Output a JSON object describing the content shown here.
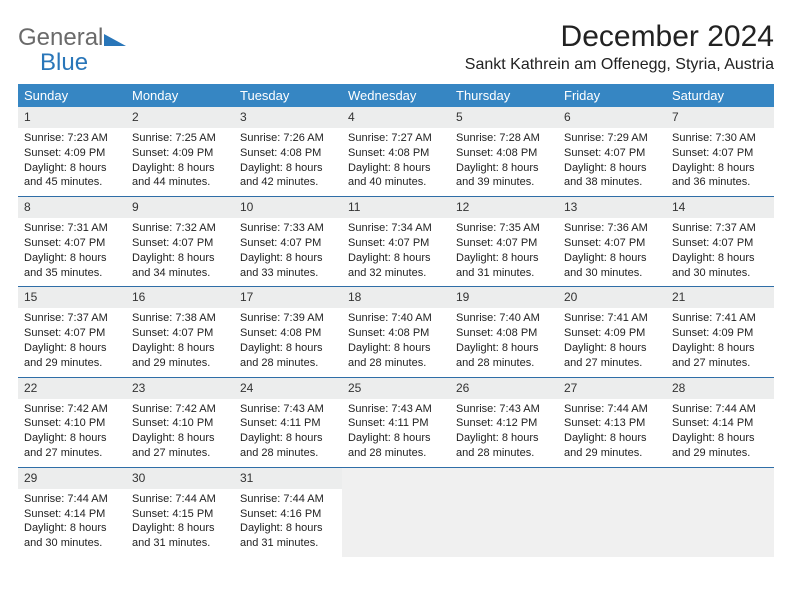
{
  "logo": {
    "text1": "General",
    "text2": "Blue"
  },
  "title": "December 2024",
  "location": "Sankt Kathrein am Offenegg, Styria, Austria",
  "weekday_header_bg": "#3686c3",
  "weekday_header_color": "#ffffff",
  "daynum_bg": "#eceded",
  "week_border_color": "#2f6ea7",
  "empty_bg": "#f0f0f0",
  "weekdays": [
    "Sunday",
    "Monday",
    "Tuesday",
    "Wednesday",
    "Thursday",
    "Friday",
    "Saturday"
  ],
  "weeks": [
    [
      {
        "n": "1",
        "sr": "Sunrise: 7:23 AM",
        "ss": "Sunset: 4:09 PM",
        "dl": "Daylight: 8 hours and 45 minutes."
      },
      {
        "n": "2",
        "sr": "Sunrise: 7:25 AM",
        "ss": "Sunset: 4:09 PM",
        "dl": "Daylight: 8 hours and 44 minutes."
      },
      {
        "n": "3",
        "sr": "Sunrise: 7:26 AM",
        "ss": "Sunset: 4:08 PM",
        "dl": "Daylight: 8 hours and 42 minutes."
      },
      {
        "n": "4",
        "sr": "Sunrise: 7:27 AM",
        "ss": "Sunset: 4:08 PM",
        "dl": "Daylight: 8 hours and 40 minutes."
      },
      {
        "n": "5",
        "sr": "Sunrise: 7:28 AM",
        "ss": "Sunset: 4:08 PM",
        "dl": "Daylight: 8 hours and 39 minutes."
      },
      {
        "n": "6",
        "sr": "Sunrise: 7:29 AM",
        "ss": "Sunset: 4:07 PM",
        "dl": "Daylight: 8 hours and 38 minutes."
      },
      {
        "n": "7",
        "sr": "Sunrise: 7:30 AM",
        "ss": "Sunset: 4:07 PM",
        "dl": "Daylight: 8 hours and 36 minutes."
      }
    ],
    [
      {
        "n": "8",
        "sr": "Sunrise: 7:31 AM",
        "ss": "Sunset: 4:07 PM",
        "dl": "Daylight: 8 hours and 35 minutes."
      },
      {
        "n": "9",
        "sr": "Sunrise: 7:32 AM",
        "ss": "Sunset: 4:07 PM",
        "dl": "Daylight: 8 hours and 34 minutes."
      },
      {
        "n": "10",
        "sr": "Sunrise: 7:33 AM",
        "ss": "Sunset: 4:07 PM",
        "dl": "Daylight: 8 hours and 33 minutes."
      },
      {
        "n": "11",
        "sr": "Sunrise: 7:34 AM",
        "ss": "Sunset: 4:07 PM",
        "dl": "Daylight: 8 hours and 32 minutes."
      },
      {
        "n": "12",
        "sr": "Sunrise: 7:35 AM",
        "ss": "Sunset: 4:07 PM",
        "dl": "Daylight: 8 hours and 31 minutes."
      },
      {
        "n": "13",
        "sr": "Sunrise: 7:36 AM",
        "ss": "Sunset: 4:07 PM",
        "dl": "Daylight: 8 hours and 30 minutes."
      },
      {
        "n": "14",
        "sr": "Sunrise: 7:37 AM",
        "ss": "Sunset: 4:07 PM",
        "dl": "Daylight: 8 hours and 30 minutes."
      }
    ],
    [
      {
        "n": "15",
        "sr": "Sunrise: 7:37 AM",
        "ss": "Sunset: 4:07 PM",
        "dl": "Daylight: 8 hours and 29 minutes."
      },
      {
        "n": "16",
        "sr": "Sunrise: 7:38 AM",
        "ss": "Sunset: 4:07 PM",
        "dl": "Daylight: 8 hours and 29 minutes."
      },
      {
        "n": "17",
        "sr": "Sunrise: 7:39 AM",
        "ss": "Sunset: 4:08 PM",
        "dl": "Daylight: 8 hours and 28 minutes."
      },
      {
        "n": "18",
        "sr": "Sunrise: 7:40 AM",
        "ss": "Sunset: 4:08 PM",
        "dl": "Daylight: 8 hours and 28 minutes."
      },
      {
        "n": "19",
        "sr": "Sunrise: 7:40 AM",
        "ss": "Sunset: 4:08 PM",
        "dl": "Daylight: 8 hours and 28 minutes."
      },
      {
        "n": "20",
        "sr": "Sunrise: 7:41 AM",
        "ss": "Sunset: 4:09 PM",
        "dl": "Daylight: 8 hours and 27 minutes."
      },
      {
        "n": "21",
        "sr": "Sunrise: 7:41 AM",
        "ss": "Sunset: 4:09 PM",
        "dl": "Daylight: 8 hours and 27 minutes."
      }
    ],
    [
      {
        "n": "22",
        "sr": "Sunrise: 7:42 AM",
        "ss": "Sunset: 4:10 PM",
        "dl": "Daylight: 8 hours and 27 minutes."
      },
      {
        "n": "23",
        "sr": "Sunrise: 7:42 AM",
        "ss": "Sunset: 4:10 PM",
        "dl": "Daylight: 8 hours and 27 minutes."
      },
      {
        "n": "24",
        "sr": "Sunrise: 7:43 AM",
        "ss": "Sunset: 4:11 PM",
        "dl": "Daylight: 8 hours and 28 minutes."
      },
      {
        "n": "25",
        "sr": "Sunrise: 7:43 AM",
        "ss": "Sunset: 4:11 PM",
        "dl": "Daylight: 8 hours and 28 minutes."
      },
      {
        "n": "26",
        "sr": "Sunrise: 7:43 AM",
        "ss": "Sunset: 4:12 PM",
        "dl": "Daylight: 8 hours and 28 minutes."
      },
      {
        "n": "27",
        "sr": "Sunrise: 7:44 AM",
        "ss": "Sunset: 4:13 PM",
        "dl": "Daylight: 8 hours and 29 minutes."
      },
      {
        "n": "28",
        "sr": "Sunrise: 7:44 AM",
        "ss": "Sunset: 4:14 PM",
        "dl": "Daylight: 8 hours and 29 minutes."
      }
    ],
    [
      {
        "n": "29",
        "sr": "Sunrise: 7:44 AM",
        "ss": "Sunset: 4:14 PM",
        "dl": "Daylight: 8 hours and 30 minutes."
      },
      {
        "n": "30",
        "sr": "Sunrise: 7:44 AM",
        "ss": "Sunset: 4:15 PM",
        "dl": "Daylight: 8 hours and 31 minutes."
      },
      {
        "n": "31",
        "sr": "Sunrise: 7:44 AM",
        "ss": "Sunset: 4:16 PM",
        "dl": "Daylight: 8 hours and 31 minutes."
      },
      null,
      null,
      null,
      null
    ]
  ]
}
